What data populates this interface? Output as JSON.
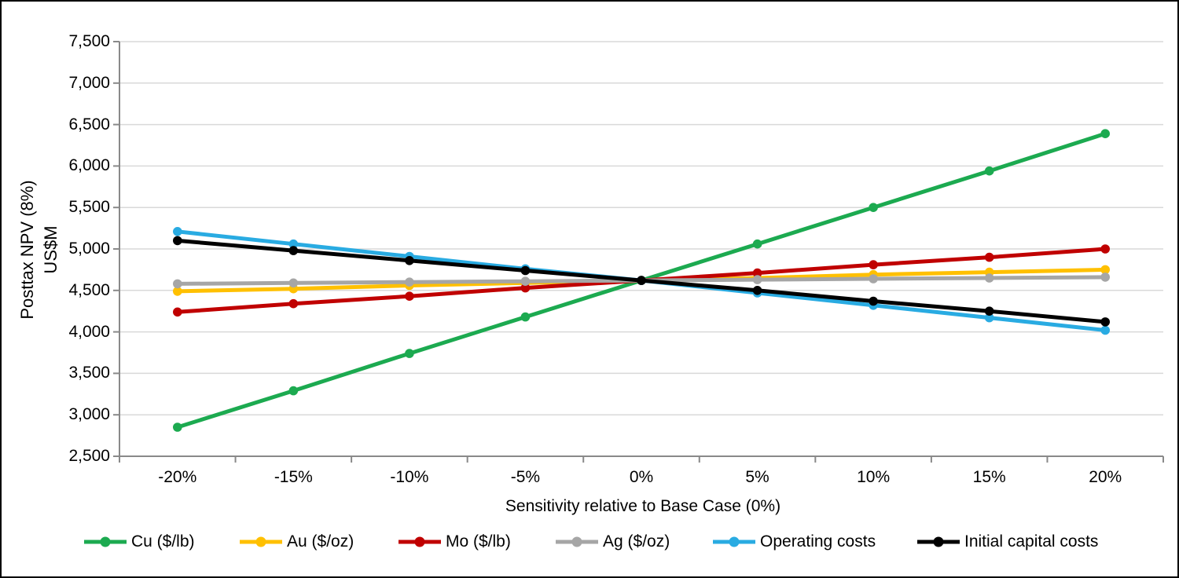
{
  "chart_data": {
    "type": "line",
    "title": "",
    "xlabel": "Sensitivity relative to Base Case (0%)",
    "ylabel_line1": "Posttax NPV (8%)",
    "ylabel_line2": "US$M",
    "x_categories": [
      "-20%",
      "-15%",
      "-10%",
      "-5%",
      "0%",
      "5%",
      "10%",
      "15%",
      "20%"
    ],
    "y_ticks": [
      "7,500",
      "7,000",
      "6,500",
      "6,000",
      "5,500",
      "5,000",
      "4,500",
      "4,000",
      "3,500",
      "3,000",
      "2,500"
    ],
    "ylim": [
      2500,
      7500
    ],
    "y_interval": 500,
    "grid": true,
    "legend_position": "bottom",
    "base_case_npv": 4620,
    "series": [
      {
        "name": "Cu ($/lb)",
        "color": "#1CAA50",
        "values": [
          2850,
          3290,
          3740,
          4180,
          4620,
          5060,
          5500,
          5940,
          6390
        ]
      },
      {
        "name": "Au ($/oz)",
        "color": "#FFC000",
        "values": [
          4490,
          4520,
          4560,
          4590,
          4620,
          4650,
          4690,
          4720,
          4750
        ]
      },
      {
        "name": "Mo ($/lb)",
        "color": "#C00000",
        "values": [
          4240,
          4340,
          4430,
          4530,
          4620,
          4710,
          4810,
          4900,
          5000
        ]
      },
      {
        "name": "Ag ($/oz)",
        "color": "#A6A6A6",
        "values": [
          4580,
          4590,
          4600,
          4610,
          4620,
          4630,
          4640,
          4650,
          4660
        ]
      },
      {
        "name": "Operating costs",
        "color": "#29ABE2",
        "values": [
          5210,
          5060,
          4910,
          4760,
          4620,
          4470,
          4320,
          4170,
          4020
        ]
      },
      {
        "name": "Initial capital costs",
        "color": "#000000",
        "values": [
          5100,
          4980,
          4860,
          4740,
          4620,
          4500,
          4370,
          4250,
          4120
        ]
      }
    ]
  },
  "colors": {
    "gridline": "#D9D9D9",
    "axis": "#898989",
    "border": "#000000",
    "background": "#FFFFFF"
  }
}
